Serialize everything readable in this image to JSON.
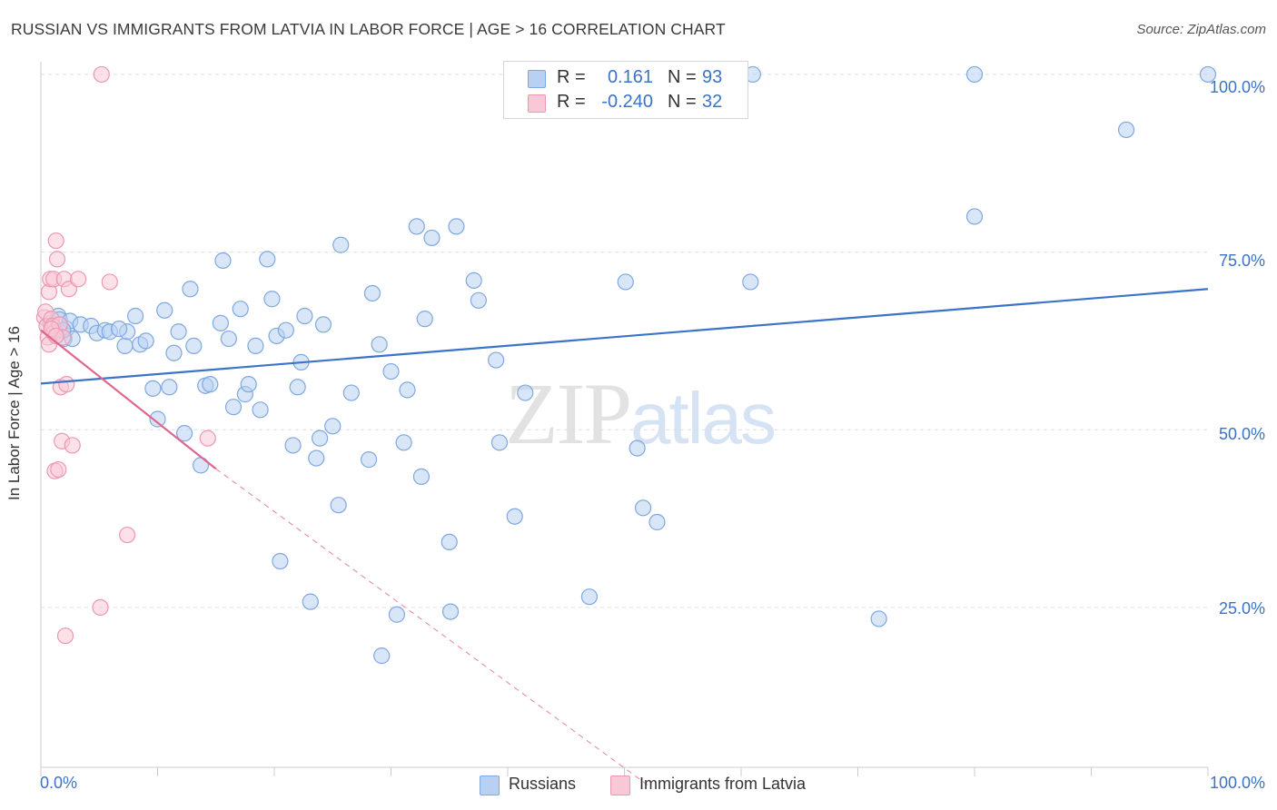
{
  "title": "RUSSIAN VS IMMIGRANTS FROM LATVIA IN LABOR FORCE | AGE > 16 CORRELATION CHART",
  "source": "Source: ZipAtlas.com",
  "watermark": {
    "zip": "ZIP",
    "atlas": "atlas"
  },
  "legend": {
    "r_label": "R =",
    "n_label": "N =",
    "series1": {
      "r": "0.161",
      "n": "93"
    },
    "series2": {
      "r": "-0.240",
      "n": "32"
    }
  },
  "colors": {
    "blue_fill": "#b8d1f2",
    "blue_stroke": "#7fa8e0",
    "blue_line": "#3b73c8",
    "pink_fill": "#f9c8d6",
    "pink_stroke": "#ec98b2",
    "pink_line": "#e0668f",
    "grid": "#dddddd",
    "axis": "#cccccc"
  },
  "chart_data": {
    "type": "scatter",
    "title": "RUSSIAN VS IMMIGRANTS FROM LATVIA IN LABOR FORCE | AGE > 16 CORRELATION CHART",
    "xlabel": "",
    "ylabel": "In Labor Force | Age > 16",
    "x_tick_labels": {
      "left": "0.0%",
      "right": "100.0%"
    },
    "y_tick_labels": [
      "100.0%",
      "75.0%",
      "50.0%",
      "25.0%"
    ],
    "y_tick_values": [
      100,
      75,
      50,
      25
    ],
    "xlim": [
      0,
      100
    ],
    "ylim": [
      2.5,
      100.5
    ],
    "grid": true,
    "legend_position": "top-center",
    "series": [
      {
        "name": "Russians",
        "trend": {
          "x": [
            0,
            100
          ],
          "y": [
            56.5,
            69.8
          ]
        },
        "points": [
          [
            0.8,
            65.0
          ],
          [
            1.2,
            64.0
          ],
          [
            1.5,
            66.0
          ],
          [
            1.6,
            65.5
          ],
          [
            2.0,
            62.8
          ],
          [
            2.2,
            64.2
          ],
          [
            2.5,
            65.3
          ],
          [
            3.4,
            64.8
          ],
          [
            4.3,
            64.6
          ],
          [
            4.8,
            63.6
          ],
          [
            5.5,
            64.0
          ],
          [
            5.9,
            63.8
          ],
          [
            7.2,
            61.8
          ],
          [
            7.4,
            63.8
          ],
          [
            8.1,
            66.0
          ],
          [
            8.5,
            62.0
          ],
          [
            9.0,
            62.5
          ],
          [
            9.6,
            55.8
          ],
          [
            10.0,
            51.5
          ],
          [
            10.6,
            66.8
          ],
          [
            11.0,
            56.0
          ],
          [
            11.4,
            60.8
          ],
          [
            11.8,
            63.8
          ],
          [
            12.3,
            49.5
          ],
          [
            12.8,
            69.8
          ],
          [
            13.1,
            61.8
          ],
          [
            13.7,
            45.0
          ],
          [
            14.1,
            56.2
          ],
          [
            14.5,
            56.4
          ],
          [
            15.4,
            65.0
          ],
          [
            15.6,
            73.8
          ],
          [
            16.1,
            62.8
          ],
          [
            16.5,
            53.2
          ],
          [
            17.1,
            67.0
          ],
          [
            17.5,
            55.0
          ],
          [
            17.8,
            56.4
          ],
          [
            18.4,
            61.8
          ],
          [
            18.8,
            52.8
          ],
          [
            19.4,
            74.0
          ],
          [
            19.8,
            68.4
          ],
          [
            20.2,
            63.2
          ],
          [
            20.5,
            31.5
          ],
          [
            21.0,
            64.0
          ],
          [
            21.6,
            47.8
          ],
          [
            22.0,
            56.0
          ],
          [
            22.3,
            59.5
          ],
          [
            22.6,
            66.0
          ],
          [
            23.1,
            25.8
          ],
          [
            23.6,
            46.0
          ],
          [
            23.9,
            48.8
          ],
          [
            24.2,
            64.8
          ],
          [
            25.0,
            50.5
          ],
          [
            25.5,
            39.4
          ],
          [
            25.7,
            76.0
          ],
          [
            26.6,
            55.2
          ],
          [
            28.1,
            45.8
          ],
          [
            28.4,
            69.2
          ],
          [
            29.0,
            62.0
          ],
          [
            29.2,
            18.2
          ],
          [
            30.0,
            58.2
          ],
          [
            30.5,
            24.0
          ],
          [
            31.1,
            48.2
          ],
          [
            31.4,
            55.6
          ],
          [
            32.2,
            78.6
          ],
          [
            32.6,
            43.4
          ],
          [
            32.9,
            65.6
          ],
          [
            33.5,
            77.0
          ],
          [
            35.0,
            34.2
          ],
          [
            35.1,
            24.4
          ],
          [
            35.6,
            78.6
          ],
          [
            37.1,
            71.0
          ],
          [
            37.5,
            68.2
          ],
          [
            39.0,
            59.8
          ],
          [
            39.3,
            48.2
          ],
          [
            40.6,
            37.8
          ],
          [
            41.5,
            55.2
          ],
          [
            47.0,
            26.5
          ],
          [
            50.1,
            70.8
          ],
          [
            51.1,
            47.4
          ],
          [
            51.6,
            39.0
          ],
          [
            52.8,
            37.0
          ],
          [
            60.8,
            70.8
          ],
          [
            71.8,
            23.4
          ],
          [
            80.0,
            80.0
          ],
          [
            93.0,
            92.2
          ],
          [
            100.0,
            100.0
          ],
          [
            58.5,
            100.0
          ],
          [
            61.0,
            100.0
          ],
          [
            80.0,
            100.0
          ],
          [
            1.0,
            63.8
          ],
          [
            2.7,
            62.8
          ],
          [
            6.7,
            64.2
          ],
          [
            1.9,
            64.0
          ]
        ]
      },
      {
        "name": "Immigrants from Latvia",
        "trend": {
          "x": [
            0,
            15
          ],
          "y": [
            64.0,
            44.5
          ]
        },
        "trend_extension": {
          "x": [
            15,
            52
          ],
          "y": [
            44.5,
            0
          ]
        },
        "points": [
          [
            0.3,
            65.8
          ],
          [
            0.4,
            66.6
          ],
          [
            0.5,
            64.6
          ],
          [
            0.6,
            63.0
          ],
          [
            0.7,
            62.0
          ],
          [
            0.7,
            69.4
          ],
          [
            0.8,
            71.2
          ],
          [
            0.9,
            65.6
          ],
          [
            1.0,
            64.6
          ],
          [
            1.1,
            63.6
          ],
          [
            1.1,
            71.2
          ],
          [
            1.2,
            44.2
          ],
          [
            1.3,
            76.6
          ],
          [
            1.4,
            74.0
          ],
          [
            1.5,
            44.4
          ],
          [
            1.6,
            64.8
          ],
          [
            1.7,
            56.0
          ],
          [
            1.8,
            48.4
          ],
          [
            1.9,
            63.0
          ],
          [
            2.0,
            71.2
          ],
          [
            2.1,
            21.0
          ],
          [
            2.2,
            56.4
          ],
          [
            2.4,
            69.8
          ],
          [
            2.7,
            47.8
          ],
          [
            3.2,
            71.2
          ],
          [
            5.2,
            100.0
          ],
          [
            5.9,
            70.8
          ],
          [
            5.1,
            25.0
          ],
          [
            7.4,
            35.2
          ],
          [
            14.3,
            48.8
          ],
          [
            0.9,
            64.2
          ],
          [
            1.3,
            63.2
          ]
        ]
      }
    ]
  },
  "bottom_legend": {
    "series1": "Russians",
    "series2": "Immigrants from Latvia"
  }
}
